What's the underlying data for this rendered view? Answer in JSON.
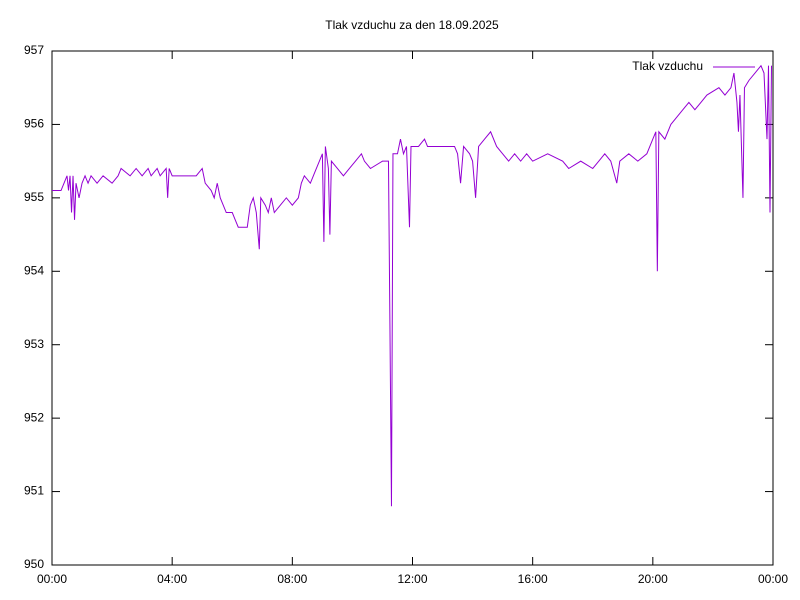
{
  "chart_data": {
    "type": "line",
    "title": "Tlak vzduchu za den 18.09.2025",
    "x": [
      0,
      0.3,
      0.4,
      0.5,
      0.55,
      0.6,
      0.65,
      0.7,
      0.75,
      0.8,
      0.9,
      1.0,
      1.1,
      1.2,
      1.3,
      1.5,
      1.7,
      2.0,
      2.2,
      2.3,
      2.6,
      2.8,
      3.0,
      3.2,
      3.3,
      3.5,
      3.6,
      3.8,
      3.85,
      3.9,
      4.0,
      4.6,
      4.8,
      5.0,
      5.1,
      5.3,
      5.4,
      5.5,
      5.6,
      5.7,
      5.8,
      6.0,
      6.1,
      6.2,
      6.5,
      6.6,
      6.7,
      6.8,
      6.9,
      6.95,
      7.1,
      7.2,
      7.3,
      7.4,
      7.6,
      7.8,
      8.0,
      8.2,
      8.3,
      8.4,
      8.6,
      8.7,
      8.8,
      8.9,
      9.0,
      9.05,
      9.1,
      9.2,
      9.25,
      9.3,
      9.5,
      9.7,
      9.9,
      10.1,
      10.3,
      10.4,
      10.6,
      11.0,
      11.2,
      11.25,
      11.3,
      11.35,
      11.5,
      11.6,
      11.7,
      11.8,
      11.9,
      11.95,
      12.2,
      12.4,
      12.5,
      13.4,
      13.5,
      13.6,
      13.7,
      13.9,
      14.0,
      14.1,
      14.2,
      14.4,
      14.6,
      14.8,
      15.0,
      15.2,
      15.4,
      15.6,
      15.8,
      16.0,
      16.5,
      17.0,
      17.2,
      17.6,
      18.0,
      18.2,
      18.4,
      18.6,
      18.8,
      18.9,
      19.2,
      19.5,
      19.8,
      20.0,
      20.1,
      20.15,
      20.2,
      20.4,
      20.6,
      20.8,
      21.0,
      21.2,
      21.4,
      21.6,
      21.8,
      22.2,
      22.4,
      22.6,
      22.7,
      22.8,
      22.85,
      22.9,
      23.0,
      23.05,
      23.2,
      23.4,
      23.6,
      23.7,
      23.8,
      23.85,
      23.9,
      23.95
    ],
    "series": [
      {
        "name": "Tlak vzduchu",
        "color": "#9400d3",
        "values": [
          955.1,
          955.1,
          955.2,
          955.3,
          955.1,
          955.3,
          954.8,
          955.3,
          954.7,
          955.2,
          955.0,
          955.2,
          955.3,
          955.2,
          955.3,
          955.2,
          955.3,
          955.2,
          955.3,
          955.4,
          955.3,
          955.4,
          955.3,
          955.4,
          955.3,
          955.4,
          955.3,
          955.4,
          955.0,
          955.4,
          955.3,
          955.3,
          955.3,
          955.4,
          955.2,
          955.1,
          955.0,
          955.2,
          955.0,
          954.9,
          954.8,
          954.8,
          954.7,
          954.6,
          954.6,
          954.9,
          955.0,
          954.8,
          954.3,
          955.0,
          954.9,
          954.8,
          955.0,
          954.8,
          954.9,
          955.0,
          954.9,
          955.0,
          955.2,
          955.3,
          955.2,
          955.3,
          955.4,
          955.5,
          955.6,
          954.4,
          955.7,
          955.4,
          954.5,
          955.5,
          955.4,
          955.3,
          955.4,
          955.5,
          955.6,
          955.5,
          955.4,
          955.5,
          955.5,
          953.2,
          950.8,
          955.6,
          955.6,
          955.8,
          955.6,
          955.7,
          954.6,
          955.7,
          955.7,
          955.8,
          955.7,
          955.7,
          955.6,
          955.2,
          955.7,
          955.6,
          955.5,
          955.0,
          955.7,
          955.8,
          955.9,
          955.7,
          955.6,
          955.5,
          955.6,
          955.5,
          955.6,
          955.5,
          955.6,
          955.5,
          955.4,
          955.5,
          955.4,
          955.5,
          955.6,
          955.5,
          955.2,
          955.5,
          955.6,
          955.5,
          955.6,
          955.8,
          955.9,
          954.0,
          955.9,
          955.8,
          956.0,
          956.1,
          956.2,
          956.3,
          956.2,
          956.3,
          956.4,
          956.5,
          956.4,
          956.5,
          956.7,
          956.3,
          955.9,
          956.4,
          955.0,
          956.5,
          956.6,
          956.7,
          956.8,
          956.7,
          955.8,
          956.8,
          954.8,
          956.8
        ]
      }
    ],
    "xlim": [
      0,
      24
    ],
    "xticks": [
      {
        "value": 0,
        "label": "00:00"
      },
      {
        "value": 4,
        "label": "04:00"
      },
      {
        "value": 8,
        "label": "08:00"
      },
      {
        "value": 12,
        "label": "12:00"
      },
      {
        "value": 16,
        "label": "16:00"
      },
      {
        "value": 20,
        "label": "20:00"
      },
      {
        "value": 24,
        "label": "00:00"
      }
    ],
    "ylim": [
      950,
      957
    ],
    "yticks": [
      950,
      951,
      952,
      953,
      954,
      955,
      956,
      957
    ],
    "grid": false,
    "legend": "top-right"
  }
}
